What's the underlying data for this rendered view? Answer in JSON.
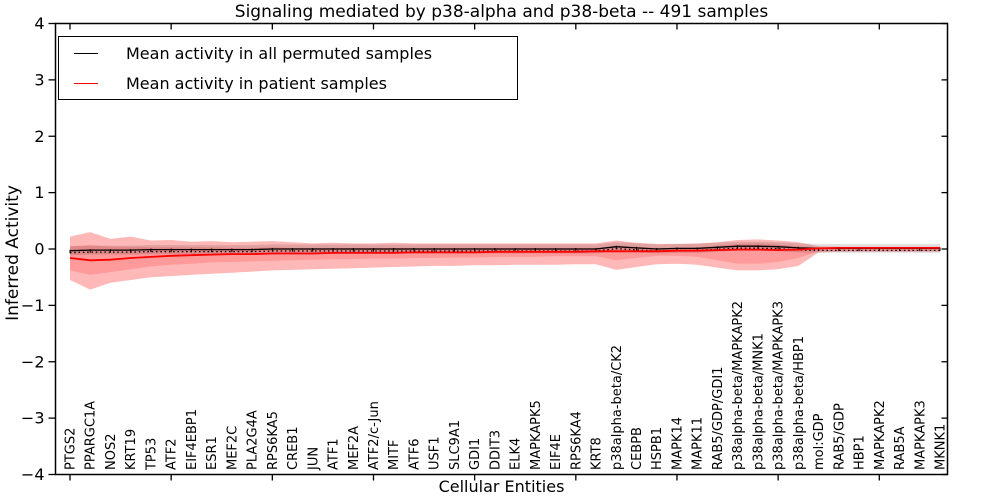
{
  "title": "Signaling mediated by p38-alpha and p38-beta -- 491 samples",
  "axes": {
    "xlabel": "Cellular Entities",
    "ylabel": "Inferred Activity",
    "ylim": [
      -4,
      4
    ],
    "yticks": [
      4,
      3,
      2,
      1,
      0,
      -1,
      -2,
      -3,
      -4
    ]
  },
  "legend": {
    "items": [
      {
        "label": "Mean activity in all permuted samples",
        "color": "#000000"
      },
      {
        "label": "Mean activity in patient samples",
        "color": "#ff0000"
      }
    ]
  },
  "chart_data": {
    "type": "line",
    "title": "Signaling mediated by p38-alpha and p38-beta -- 491 samples",
    "xlabel": "Cellular Entities",
    "ylabel": "Inferred Activity",
    "ylim": [
      -4,
      4
    ],
    "grid": false,
    "legend_position": "upper left",
    "categories": [
      "PTGS2",
      "PPARGC1A",
      "NOS2",
      "KRT19",
      "TP53",
      "ATF2",
      "EIF4EBP1",
      "ESR1",
      "MEF2C",
      "PLA2G4A",
      "RPS6KA5",
      "CREB1",
      "JUN",
      "ATF1",
      "MEF2A",
      "ATF2/c-Jun",
      "MITF",
      "ATF6",
      "USF1",
      "SLC9A1",
      "GDI1",
      "DDIT3",
      "ELK4",
      "MAPKAPK5",
      "EIF4E",
      "RPS6KA4",
      "KRT8",
      "p38alpha-beta/CK2",
      "CEBPB",
      "HSPB1",
      "MAPK14",
      "MAPK11",
      "RAB5/GDP/GDI1",
      "p38alpha-beta/MAPKAPK2",
      "p38alpha-beta/MNK1",
      "p38alpha-beta/MAPKAPK3",
      "p38alpha-beta/HBP1",
      "mol:GDP",
      "RAB5/GDP",
      "HBP1",
      "MAPKAPK2",
      "RAB5A",
      "MAPKAPK3",
      "MKNK1"
    ],
    "series": [
      {
        "name": "Mean activity in all permuted samples",
        "color": "#000000",
        "values": [
          -0.03,
          -0.02,
          -0.02,
          -0.02,
          -0.01,
          -0.01,
          -0.01,
          -0.01,
          -0.01,
          -0.01,
          0,
          0,
          0,
          0,
          0,
          0,
          0,
          0,
          0,
          0,
          0,
          0,
          0,
          0,
          0,
          0,
          0,
          0.04,
          0.02,
          0,
          0.01,
          0.01,
          0.03,
          0.05,
          0.05,
          0.04,
          0.02,
          0.01,
          0.01,
          0.01,
          0.01,
          0.01,
          0.01,
          0.01
        ]
      },
      {
        "name": "Mean activity in patient samples",
        "color": "#ff0000",
        "values": [
          -0.16,
          -0.2,
          -0.19,
          -0.16,
          -0.14,
          -0.12,
          -0.11,
          -0.1,
          -0.09,
          -0.09,
          -0.08,
          -0.08,
          -0.08,
          -0.07,
          -0.07,
          -0.07,
          -0.07,
          -0.06,
          -0.06,
          -0.06,
          -0.06,
          -0.05,
          -0.05,
          -0.05,
          -0.05,
          -0.05,
          -0.04,
          -0.04,
          -0.04,
          -0.04,
          -0.03,
          -0.03,
          -0.02,
          -0.01,
          -0.01,
          -0.02,
          -0.01,
          0.01,
          0.02,
          0.02,
          0.02,
          0.02,
          0.02,
          0.02
        ]
      }
    ],
    "bands": [
      {
        "name": "patient-activity-range-outer",
        "color": "#ff0000",
        "opacity": 0.28,
        "top": [
          0.22,
          0.3,
          0.18,
          0.22,
          0.15,
          0.16,
          0.13,
          0.14,
          0.12,
          0.13,
          0.14,
          0.12,
          0.1,
          0.11,
          0.1,
          0.1,
          0.11,
          0.1,
          0.1,
          0.1,
          0.1,
          0.1,
          0.1,
          0.1,
          0.1,
          0.1,
          0.1,
          0.15,
          0.11,
          0.09,
          0.09,
          0.1,
          0.12,
          0.16,
          0.17,
          0.15,
          0.12,
          0.05,
          0.04,
          0.04,
          0.04,
          0.04,
          0.04,
          0.04
        ],
        "bottom": [
          -0.55,
          -0.72,
          -0.6,
          -0.55,
          -0.5,
          -0.48,
          -0.46,
          -0.44,
          -0.42,
          -0.4,
          -0.38,
          -0.37,
          -0.36,
          -0.35,
          -0.34,
          -0.33,
          -0.32,
          -0.31,
          -0.3,
          -0.3,
          -0.29,
          -0.29,
          -0.28,
          -0.28,
          -0.28,
          -0.27,
          -0.27,
          -0.37,
          -0.32,
          -0.27,
          -0.26,
          -0.28,
          -0.33,
          -0.38,
          -0.38,
          -0.36,
          -0.3,
          -0.06,
          -0.05,
          -0.05,
          -0.05,
          -0.05,
          -0.05,
          -0.05
        ]
      },
      {
        "name": "patient-activity-range-inner",
        "color": "#ff0000",
        "opacity": 0.16,
        "top": [
          0.05,
          0.07,
          0.04,
          0.04,
          0.03,
          0.03,
          0.03,
          0.03,
          0.02,
          0.02,
          0.03,
          0.02,
          0.02,
          0.02,
          0.02,
          0.02,
          0.02,
          0.02,
          0.02,
          0.02,
          0.02,
          0.02,
          0.02,
          0.02,
          0.02,
          0.02,
          0.02,
          0.06,
          0.04,
          0.02,
          0.02,
          0.03,
          0.06,
          0.09,
          0.1,
          0.08,
          0.05,
          0.03,
          0.025,
          0.025,
          0.025,
          0.025,
          0.025,
          0.025
        ],
        "bottom": [
          -0.38,
          -0.46,
          -0.41,
          -0.36,
          -0.31,
          -0.28,
          -0.26,
          -0.24,
          -0.23,
          -0.22,
          -0.21,
          -0.2,
          -0.19,
          -0.18,
          -0.18,
          -0.17,
          -0.17,
          -0.16,
          -0.16,
          -0.15,
          -0.15,
          -0.14,
          -0.14,
          -0.14,
          -0.13,
          -0.13,
          -0.13,
          -0.2,
          -0.16,
          -0.12,
          -0.12,
          -0.14,
          -0.2,
          -0.26,
          -0.26,
          -0.23,
          -0.16,
          -0.04,
          -0.03,
          -0.03,
          -0.03,
          -0.03,
          -0.03,
          -0.03
        ]
      },
      {
        "name": "permuted-activity-range",
        "color": "#000000",
        "opacity": 0.12,
        "half_width": 0.08
      }
    ]
  }
}
